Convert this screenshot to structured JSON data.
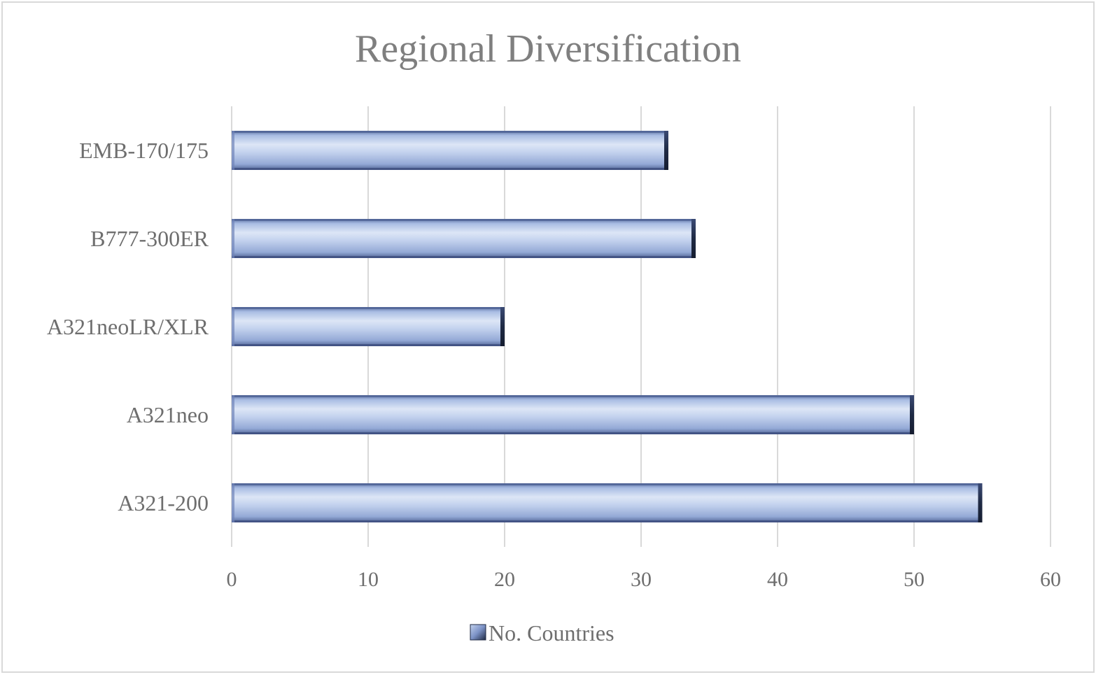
{
  "chart_data": {
    "type": "bar",
    "orientation": "horizontal",
    "title": "Regional Diversification",
    "categories": [
      "A321-200",
      "A321neo",
      "A321neoLR/XLR",
      "B777-300ER",
      "EMB-170/175"
    ],
    "series": [
      {
        "name": "No. Countries",
        "values": [
          55,
          50,
          20,
          34,
          32
        ]
      }
    ],
    "xlim": [
      0,
      60
    ],
    "x_ticks": [
      "0",
      "10",
      "20",
      "30",
      "40",
      "50",
      "60"
    ],
    "xlabel": "",
    "ylabel": "",
    "grid": "vertical",
    "legend_position": "bottom",
    "colors": {
      "bar_fill": "#a9bde3",
      "bar_light": "#dde6f6",
      "bar_dark": "#5a6fa3",
      "bar_edge": "#1f2a44",
      "title": "#7f7f7f",
      "labels": "#6e6e6e",
      "grid": "#d9d9d9",
      "frame": "#d9d9d9"
    }
  }
}
